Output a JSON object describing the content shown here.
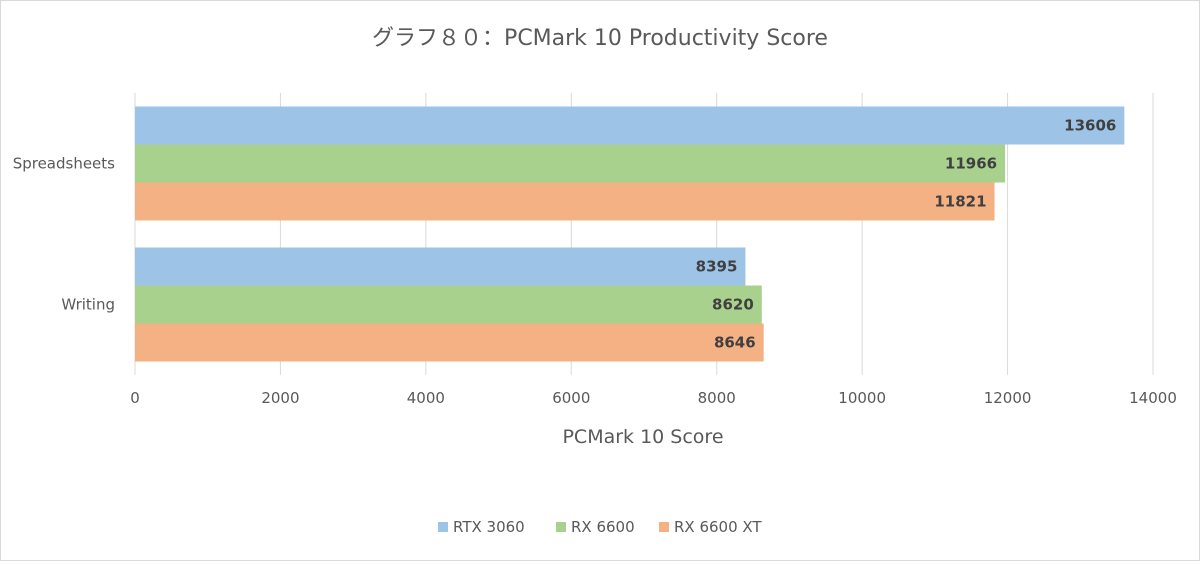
{
  "chart_data": {
    "type": "bar",
    "orientation": "horizontal",
    "title": "グラフ８０：PCMark 10 Productivity Score",
    "xlabel": "PCMark 10 Score",
    "ylabel": "",
    "xlim": [
      0,
      14000
    ],
    "x_ticks": [
      "0",
      "2000",
      "4000",
      "6000",
      "8000",
      "10000",
      "12000",
      "14000"
    ],
    "categories": [
      "Spreadsheets",
      "Writing"
    ],
    "series": [
      {
        "name": "RTX 3060",
        "color": "#9dc3e6",
        "values": [
          13606,
          8395
        ]
      },
      {
        "name": "RX 6600",
        "color": "#a9d18e",
        "values": [
          11966,
          8620
        ]
      },
      {
        "name": "RX 6600 XT",
        "color": "#f4b183",
        "values": [
          11821,
          8646
        ]
      }
    ],
    "grid": "vertical",
    "legend": "bottom",
    "data_labels": true
  }
}
